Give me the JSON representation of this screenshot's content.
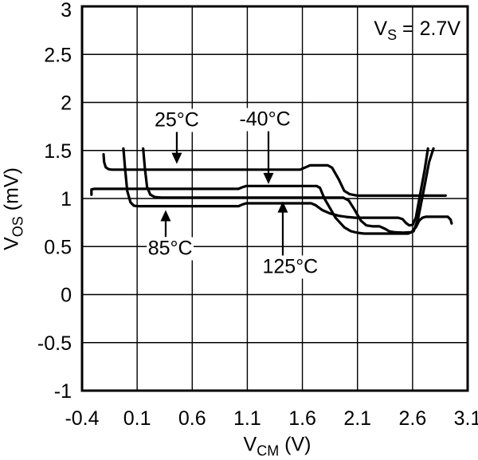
{
  "chart_data": {
    "type": "line",
    "title": "",
    "xlabel": {
      "main": "V",
      "sub": "CM",
      "rest": " (V)"
    },
    "ylabel": {
      "main": "V",
      "sub": "OS",
      "rest": " (mV)"
    },
    "note": {
      "main": "V",
      "sub": "S",
      "rest": " = 2.7V"
    },
    "xlim": [
      -0.4,
      3.1
    ],
    "ylim": [
      -1,
      3
    ],
    "xticks": [
      -0.4,
      0.1,
      0.6,
      1.1,
      1.6,
      2.1,
      2.6,
      3.1
    ],
    "xtick_labels": [
      "-0.4",
      "0.1",
      "0.6",
      "1.1",
      "1.6",
      "2.1",
      "2.6",
      "3.1"
    ],
    "yticks": [
      3,
      2.5,
      2,
      1.5,
      1,
      0.5,
      0,
      -0.5,
      -1
    ],
    "ytick_labels": [
      "3",
      "2.5",
      "2",
      "1.5",
      "1",
      "0.5",
      "0",
      "-0.5",
      "-1"
    ],
    "grid": true,
    "legend_position": "none",
    "colors": {
      "curve": "#000000",
      "grid": "#000000",
      "background": "#ffffff"
    },
    "series": [
      {
        "name": "25°C",
        "points": [
          [
            -0.205,
            1.46
          ],
          [
            -0.2,
            1.38
          ],
          [
            -0.185,
            1.325
          ],
          [
            -0.16,
            1.305
          ],
          [
            -0.13,
            1.3
          ],
          [
            1.58,
            1.3
          ],
          [
            1.63,
            1.325
          ],
          [
            1.67,
            1.345
          ],
          [
            1.83,
            1.345
          ],
          [
            1.87,
            1.32
          ],
          [
            1.93,
            1.2
          ],
          [
            1.98,
            1.08
          ],
          [
            2.03,
            1.045
          ],
          [
            2.1,
            1.03
          ],
          [
            2.9,
            1.03
          ]
        ]
      },
      {
        "name": "-40°C",
        "points": [
          [
            -0.315,
            1.04
          ],
          [
            -0.315,
            1.095
          ],
          [
            -0.29,
            1.1
          ],
          [
            1.02,
            1.1
          ],
          [
            1.05,
            1.115
          ],
          [
            1.09,
            1.13
          ],
          [
            1.73,
            1.13
          ],
          [
            1.76,
            1.11
          ],
          [
            1.8,
            1.0
          ],
          [
            1.84,
            0.92
          ],
          [
            1.9,
            0.8
          ],
          [
            1.98,
            0.7
          ],
          [
            2.04,
            0.66
          ],
          [
            2.1,
            0.643
          ],
          [
            2.16,
            0.635
          ],
          [
            2.56,
            0.635
          ],
          [
            2.61,
            0.66
          ],
          [
            2.65,
            0.79
          ],
          [
            2.7,
            1.08
          ],
          [
            2.75,
            1.38
          ],
          [
            2.79,
            1.52
          ]
        ]
      },
      {
        "name": "85°C",
        "points": [
          [
            -0.025,
            1.52
          ],
          [
            -0.01,
            1.32
          ],
          [
            0.01,
            1.08
          ],
          [
            0.04,
            0.96
          ],
          [
            0.07,
            0.925
          ],
          [
            0.1,
            0.92
          ],
          [
            1.02,
            0.92
          ],
          [
            1.05,
            0.935
          ],
          [
            1.09,
            0.95
          ],
          [
            1.68,
            0.95
          ],
          [
            1.72,
            0.93
          ],
          [
            1.78,
            0.88
          ],
          [
            1.85,
            0.845
          ],
          [
            1.93,
            0.82
          ],
          [
            2.0,
            0.808
          ],
          [
            2.08,
            0.8
          ],
          [
            2.47,
            0.8
          ],
          [
            2.51,
            0.785
          ],
          [
            2.54,
            0.745
          ],
          [
            2.57,
            0.72
          ],
          [
            2.6,
            0.725
          ],
          [
            2.63,
            0.8
          ],
          [
            2.67,
            1.05
          ],
          [
            2.71,
            1.3
          ],
          [
            2.74,
            1.52
          ]
        ]
      },
      {
        "name": "125°C",
        "points": [
          [
            0.155,
            1.52
          ],
          [
            0.17,
            1.32
          ],
          [
            0.19,
            1.12
          ],
          [
            0.22,
            1.04
          ],
          [
            0.26,
            1.015
          ],
          [
            0.32,
            1.01
          ],
          [
            1.97,
            1.01
          ],
          [
            2.02,
            0.98
          ],
          [
            2.07,
            0.89
          ],
          [
            2.13,
            0.77
          ],
          [
            2.18,
            0.72
          ],
          [
            2.24,
            0.71
          ],
          [
            2.3,
            0.71
          ],
          [
            2.35,
            0.685
          ],
          [
            2.39,
            0.658
          ],
          [
            2.44,
            0.648
          ],
          [
            2.52,
            0.645
          ],
          [
            2.59,
            0.65
          ],
          [
            2.63,
            0.7
          ],
          [
            2.66,
            0.77
          ],
          [
            2.69,
            0.8
          ],
          [
            2.72,
            0.81
          ],
          [
            2.92,
            0.81
          ],
          [
            2.945,
            0.78
          ],
          [
            2.955,
            0.74
          ]
        ]
      }
    ],
    "annotations": [
      {
        "label": "25°C",
        "text_x": 0.46,
        "text_y": 1.81,
        "arrow": {
          "x": 0.46,
          "from_y": 1.7,
          "to_y": 1.36
        }
      },
      {
        "label": "-40°C",
        "text_x": 1.26,
        "text_y": 1.82,
        "arrow": {
          "x": 1.292,
          "from_y": 1.7,
          "to_y": 1.15
        }
      },
      {
        "label": "85°C",
        "text_x": 0.4,
        "text_y": 0.48,
        "arrow": {
          "x": 0.359,
          "from_y": 0.6,
          "to_y": 0.88
        }
      },
      {
        "label": "125°C",
        "text_x": 1.49,
        "text_y": 0.29,
        "arrow": {
          "x": 1.422,
          "from_y": 0.4,
          "to_y": 0.97
        }
      }
    ]
  }
}
